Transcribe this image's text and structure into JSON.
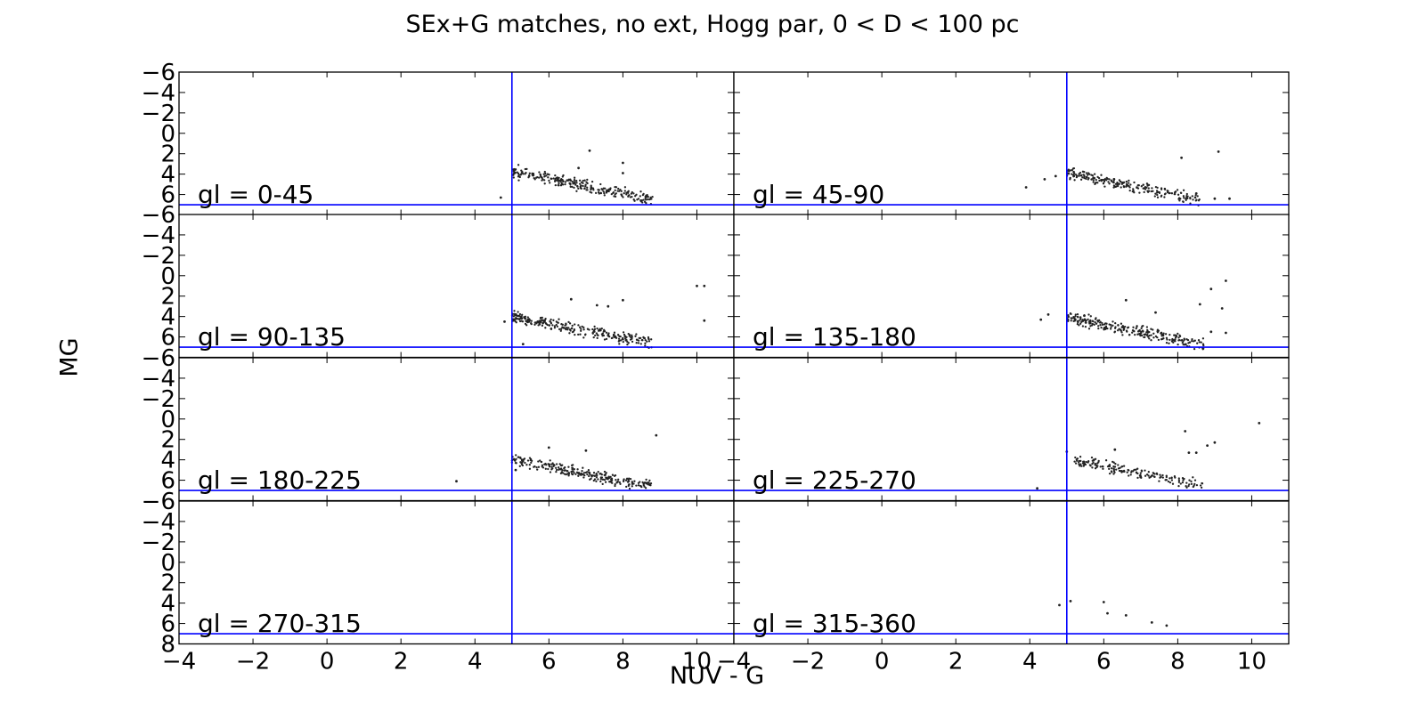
{
  "chart_data": {
    "type": "scatter",
    "title": "SEx+G matches, no ext, Hogg par, 0 < D < 100 pc",
    "xlabel": "NUV - G",
    "ylabel": "MG",
    "xlim": [
      -4,
      11
    ],
    "ylim": [
      8,
      -6
    ],
    "y_inverted": true,
    "x_ticks": [
      -4,
      -2,
      0,
      2,
      4,
      6,
      8,
      10
    ],
    "y_ticks": [
      -6,
      -4,
      -2,
      0,
      2,
      4,
      6,
      8
    ],
    "grid": false,
    "reference_lines": {
      "vertical_x": 5,
      "horizontal_y": 7,
      "color": "#0000ff"
    },
    "point_color": "#222222",
    "panels": [
      {
        "label": "gl = 0-45",
        "main_sequence": {
          "x_start": 5.0,
          "x_end": 8.8,
          "y_start": 3.7,
          "y_end": 6.5,
          "spread": 0.45,
          "count": 260,
          "seed": 11
        },
        "points": [
          [
            7.1,
            1.7
          ],
          [
            8.0,
            2.9
          ],
          [
            8.0,
            3.9
          ],
          [
            4.7,
            6.3
          ],
          [
            7.6,
            5.6
          ],
          [
            6.8,
            3.4
          ]
        ]
      },
      {
        "label": "gl = 45-90",
        "main_sequence": {
          "x_start": 5.0,
          "x_end": 8.6,
          "y_start": 3.9,
          "y_end": 6.5,
          "spread": 0.45,
          "count": 230,
          "seed": 23
        },
        "points": [
          [
            9.1,
            1.8
          ],
          [
            8.1,
            2.4
          ],
          [
            3.9,
            5.3
          ],
          [
            4.4,
            4.5
          ],
          [
            4.7,
            4.2
          ],
          [
            9.0,
            6.4
          ],
          [
            9.4,
            6.4
          ],
          [
            8.5,
            5.9
          ]
        ]
      },
      {
        "label": "gl = 90-135",
        "main_sequence": {
          "x_start": 5.0,
          "x_end": 8.8,
          "y_start": 4.0,
          "y_end": 6.6,
          "spread": 0.45,
          "count": 270,
          "seed": 37
        },
        "points": [
          [
            10.0,
            1.0
          ],
          [
            10.2,
            1.0
          ],
          [
            10.2,
            4.4
          ],
          [
            8.0,
            2.4
          ],
          [
            7.3,
            2.9
          ],
          [
            6.6,
            2.3
          ],
          [
            5.3,
            6.7
          ],
          [
            7.6,
            3.0
          ],
          [
            4.8,
            4.5
          ]
        ]
      },
      {
        "label": "gl = 135-180",
        "main_sequence": {
          "x_start": 5.0,
          "x_end": 8.7,
          "y_start": 4.1,
          "y_end": 6.8,
          "spread": 0.5,
          "count": 260,
          "seed": 53
        },
        "points": [
          [
            9.3,
            0.5
          ],
          [
            8.9,
            1.3
          ],
          [
            8.6,
            2.8
          ],
          [
            8.9,
            5.5
          ],
          [
            9.3,
            5.6
          ],
          [
            6.6,
            2.4
          ],
          [
            4.3,
            4.3
          ],
          [
            9.2,
            3.2
          ],
          [
            4.5,
            3.8
          ],
          [
            7.4,
            3.6
          ]
        ]
      },
      {
        "label": "gl = 180-225",
        "main_sequence": {
          "x_start": 5.0,
          "x_end": 8.8,
          "y_start": 4.0,
          "y_end": 6.6,
          "spread": 0.45,
          "count": 250,
          "seed": 71
        },
        "points": [
          [
            8.9,
            1.6
          ],
          [
            3.5,
            6.1
          ],
          [
            7.0,
            3.1
          ],
          [
            6.0,
            2.8
          ],
          [
            5.1,
            5.0
          ]
        ]
      },
      {
        "label": "gl = 225-270",
        "main_sequence": {
          "x_start": 5.2,
          "x_end": 8.7,
          "y_start": 4.0,
          "y_end": 6.6,
          "spread": 0.45,
          "count": 170,
          "seed": 89
        },
        "points": [
          [
            10.2,
            0.4
          ],
          [
            8.2,
            1.2
          ],
          [
            9.0,
            2.3
          ],
          [
            8.8,
            2.6
          ],
          [
            8.3,
            3.3
          ],
          [
            8.5,
            3.3
          ],
          [
            4.2,
            6.8
          ],
          [
            5.0,
            3.2
          ],
          [
            6.3,
            3.0
          ]
        ]
      },
      {
        "label": "gl = 270-315",
        "points": []
      },
      {
        "label": "gl = 315-360",
        "points": [
          [
            4.8,
            4.2
          ],
          [
            5.1,
            3.8
          ],
          [
            6.0,
            3.9
          ],
          [
            6.1,
            5.0
          ],
          [
            6.6,
            5.2
          ],
          [
            7.3,
            5.9
          ],
          [
            7.7,
            6.2
          ]
        ]
      }
    ]
  }
}
